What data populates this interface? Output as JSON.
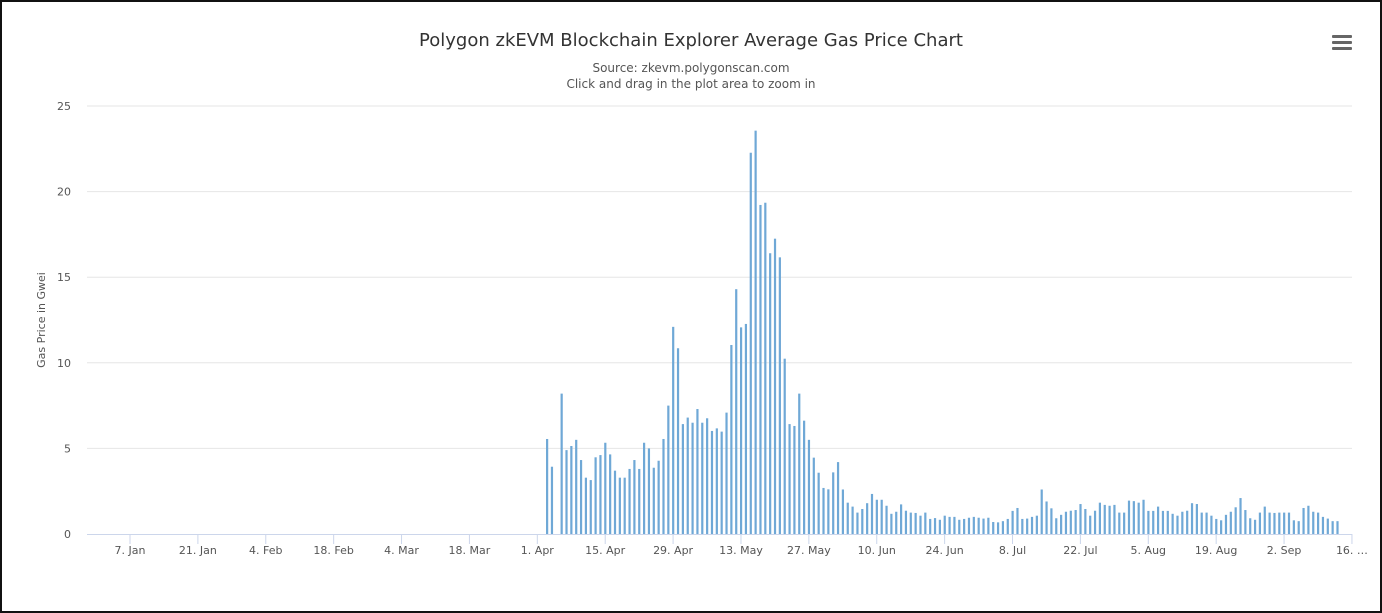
{
  "chart_data": {
    "type": "bar",
    "title": "Polygon zkEVM Blockchain Explorer Average Gas Price Chart",
    "subtitle": "Source: zkevm.polygonscan.com",
    "subtitle2": "Click and drag in the plot area to zoom in",
    "ylabel": "Gas Price in Gwei",
    "xlabel": "",
    "ylim": [
      0,
      25
    ],
    "yticks": [
      "0",
      "5",
      "10",
      "15",
      "20",
      "25"
    ],
    "xticks": [
      {
        "date": "01-07",
        "label": "7. Jan"
      },
      {
        "date": "01-21",
        "label": "21. Jan"
      },
      {
        "date": "02-04",
        "label": "4. Feb"
      },
      {
        "date": "02-18",
        "label": "18. Feb"
      },
      {
        "date": "03-04",
        "label": "4. Mar"
      },
      {
        "date": "03-18",
        "label": "18. Mar"
      },
      {
        "date": "04-01",
        "label": "1. Apr"
      },
      {
        "date": "04-15",
        "label": "15. Apr"
      },
      {
        "date": "04-29",
        "label": "29. Apr"
      },
      {
        "date": "05-13",
        "label": "13. May"
      },
      {
        "date": "05-27",
        "label": "27. May"
      },
      {
        "date": "06-10",
        "label": "10. Jun"
      },
      {
        "date": "06-24",
        "label": "24. Jun"
      },
      {
        "date": "07-08",
        "label": "8. Jul"
      },
      {
        "date": "07-22",
        "label": "22. Jul"
      },
      {
        "date": "08-05",
        "label": "5. Aug"
      },
      {
        "date": "08-19",
        "label": "19. Aug"
      },
      {
        "date": "09-02",
        "label": "2. Sep"
      },
      {
        "date": "09-16",
        "label": "16. …"
      }
    ],
    "xrange": [
      "12-29",
      "09-19"
    ],
    "grid": true,
    "legend": "none",
    "color": "#6fa8d6",
    "points": [
      [
        "04-03",
        5.55
      ],
      [
        "04-04",
        3.93
      ],
      [
        "04-06",
        8.2
      ],
      [
        "04-07",
        4.9
      ],
      [
        "04-08",
        5.14
      ],
      [
        "04-09",
        5.5
      ],
      [
        "04-10",
        4.32
      ],
      [
        "04-11",
        3.29
      ],
      [
        "04-12",
        3.15
      ],
      [
        "04-13",
        4.48
      ],
      [
        "04-14",
        4.61
      ],
      [
        "04-15",
        5.33
      ],
      [
        "04-16",
        4.65
      ],
      [
        "04-17",
        3.7
      ],
      [
        "04-18",
        3.29
      ],
      [
        "04-19",
        3.29
      ],
      [
        "04-20",
        3.8
      ],
      [
        "04-21",
        4.32
      ],
      [
        "04-22",
        3.8
      ],
      [
        "04-23",
        5.33
      ],
      [
        "04-24",
        5.0
      ],
      [
        "04-25",
        3.87
      ],
      [
        "04-26",
        4.28
      ],
      [
        "04-27",
        5.55
      ],
      [
        "04-28",
        7.5
      ],
      [
        "04-29",
        12.1
      ],
      [
        "04-30",
        10.85
      ],
      [
        "05-01",
        6.42
      ],
      [
        "05-02",
        6.8
      ],
      [
        "05-03",
        6.5
      ],
      [
        "05-04",
        7.3
      ],
      [
        "05-05",
        6.5
      ],
      [
        "05-06",
        6.76
      ],
      [
        "05-07",
        6.02
      ],
      [
        "05-08",
        6.17
      ],
      [
        "05-09",
        5.98
      ],
      [
        "05-10",
        7.09
      ],
      [
        "05-11",
        11.04
      ],
      [
        "05-12",
        14.3
      ],
      [
        "05-13",
        12.07
      ],
      [
        "05-14",
        12.27
      ],
      [
        "05-15",
        22.27
      ],
      [
        "05-16",
        23.56
      ],
      [
        "05-17",
        19.22
      ],
      [
        "05-18",
        19.35
      ],
      [
        "05-19",
        16.4
      ],
      [
        "05-20",
        17.25
      ],
      [
        "05-21",
        16.16
      ],
      [
        "05-22",
        10.24
      ],
      [
        "05-23",
        6.42
      ],
      [
        "05-24",
        6.31
      ],
      [
        "05-25",
        8.2
      ],
      [
        "05-26",
        6.62
      ],
      [
        "05-27",
        5.5
      ],
      [
        "05-28",
        4.46
      ],
      [
        "05-29",
        3.58
      ],
      [
        "05-30",
        2.69
      ],
      [
        "05-31",
        2.61
      ],
      [
        "06-01",
        3.6
      ],
      [
        "06-02",
        4.2
      ],
      [
        "06-03",
        2.6
      ],
      [
        "06-04",
        1.83
      ],
      [
        "06-05",
        1.6
      ],
      [
        "06-06",
        1.25
      ],
      [
        "06-07",
        1.46
      ],
      [
        "06-08",
        1.8
      ],
      [
        "06-09",
        2.34
      ],
      [
        "06-10",
        2.0
      ],
      [
        "06-11",
        2.0
      ],
      [
        "06-12",
        1.65
      ],
      [
        "06-13",
        1.18
      ],
      [
        "06-14",
        1.3
      ],
      [
        "06-15",
        1.73
      ],
      [
        "06-16",
        1.36
      ],
      [
        "06-17",
        1.25
      ],
      [
        "06-18",
        1.23
      ],
      [
        "06-19",
        1.07
      ],
      [
        "06-20",
        1.25
      ],
      [
        "06-21",
        0.88
      ],
      [
        "06-22",
        0.93
      ],
      [
        "06-23",
        0.83
      ],
      [
        "06-24",
        1.07
      ],
      [
        "06-25",
        1.0
      ],
      [
        "06-26",
        1.0
      ],
      [
        "06-27",
        0.83
      ],
      [
        "06-28",
        0.88
      ],
      [
        "06-29",
        0.95
      ],
      [
        "06-30",
        1.0
      ],
      [
        "07-01",
        0.95
      ],
      [
        "07-02",
        0.9
      ],
      [
        "07-03",
        0.95
      ],
      [
        "07-04",
        0.7
      ],
      [
        "07-05",
        0.68
      ],
      [
        "07-06",
        0.75
      ],
      [
        "07-07",
        0.88
      ],
      [
        "07-08",
        1.35
      ],
      [
        "07-09",
        1.52
      ],
      [
        "07-10",
        0.88
      ],
      [
        "07-11",
        0.9
      ],
      [
        "07-12",
        1.0
      ],
      [
        "07-13",
        1.07
      ],
      [
        "07-14",
        2.6
      ],
      [
        "07-15",
        1.9
      ],
      [
        "07-16",
        1.5
      ],
      [
        "07-17",
        0.92
      ],
      [
        "07-18",
        1.12
      ],
      [
        "07-19",
        1.3
      ],
      [
        "07-20",
        1.36
      ],
      [
        "07-21",
        1.4
      ],
      [
        "07-22",
        1.75
      ],
      [
        "07-23",
        1.46
      ],
      [
        "07-24",
        1.07
      ],
      [
        "07-25",
        1.36
      ],
      [
        "07-26",
        1.83
      ],
      [
        "07-27",
        1.7
      ],
      [
        "07-28",
        1.65
      ],
      [
        "07-29",
        1.7
      ],
      [
        "07-30",
        1.25
      ],
      [
        "07-31",
        1.25
      ],
      [
        "08-01",
        1.95
      ],
      [
        "08-02",
        1.92
      ],
      [
        "08-03",
        1.83
      ],
      [
        "08-04",
        2.0
      ],
      [
        "08-05",
        1.35
      ],
      [
        "08-06",
        1.35
      ],
      [
        "08-07",
        1.6
      ],
      [
        "08-08",
        1.35
      ],
      [
        "08-09",
        1.35
      ],
      [
        "08-10",
        1.18
      ],
      [
        "08-11",
        1.07
      ],
      [
        "08-12",
        1.3
      ],
      [
        "08-13",
        1.36
      ],
      [
        "08-14",
        1.8
      ],
      [
        "08-15",
        1.75
      ],
      [
        "08-16",
        1.25
      ],
      [
        "08-17",
        1.25
      ],
      [
        "08-18",
        1.07
      ],
      [
        "08-19",
        0.88
      ],
      [
        "08-20",
        0.8
      ],
      [
        "08-21",
        1.12
      ],
      [
        "08-22",
        1.3
      ],
      [
        "08-23",
        1.56
      ],
      [
        "08-24",
        2.1
      ],
      [
        "08-25",
        1.4
      ],
      [
        "08-26",
        0.92
      ],
      [
        "08-27",
        0.83
      ],
      [
        "08-28",
        1.25
      ],
      [
        "08-29",
        1.6
      ],
      [
        "08-30",
        1.25
      ],
      [
        "08-31",
        1.23
      ],
      [
        "09-01",
        1.25
      ],
      [
        "09-02",
        1.25
      ],
      [
        "09-03",
        1.25
      ],
      [
        "09-04",
        0.8
      ],
      [
        "09-05",
        0.75
      ],
      [
        "09-06",
        1.52
      ],
      [
        "09-07",
        1.65
      ],
      [
        "09-08",
        1.3
      ],
      [
        "09-09",
        1.25
      ],
      [
        "09-10",
        1.0
      ],
      [
        "09-11",
        0.9
      ],
      [
        "09-12",
        0.75
      ],
      [
        "09-13",
        0.75
      ]
    ]
  },
  "menu": {
    "icon": "hamburger-menu-icon"
  }
}
